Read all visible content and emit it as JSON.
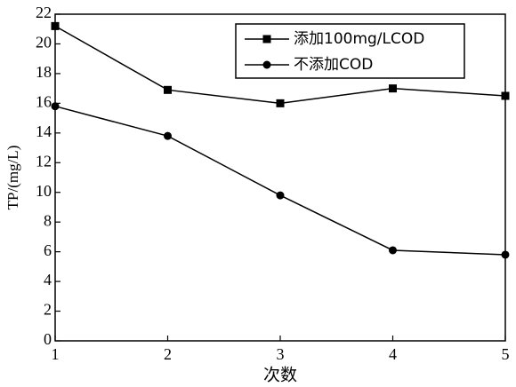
{
  "chart_data": {
    "type": "line",
    "x_label": "次数",
    "y_label": "TP/(mg/L)",
    "x": [
      1,
      2,
      3,
      4,
      5
    ],
    "xlim": [
      1,
      5
    ],
    "xticks": [
      1,
      2,
      3,
      4,
      5
    ],
    "ylim": [
      0,
      22
    ],
    "yticks": [
      0,
      2,
      4,
      6,
      8,
      10,
      12,
      14,
      16,
      18,
      20,
      22
    ],
    "legend": "top-right",
    "series": [
      {
        "name": "添加100mg/LCOD",
        "color": "#000000",
        "marker": "square",
        "values": [
          21.2,
          16.9,
          16.0,
          17.0,
          16.5
        ]
      },
      {
        "name": "不添加COD",
        "color": "#000000",
        "marker": "circle",
        "values": [
          15.8,
          13.8,
          9.8,
          6.1,
          5.8
        ]
      }
    ]
  }
}
